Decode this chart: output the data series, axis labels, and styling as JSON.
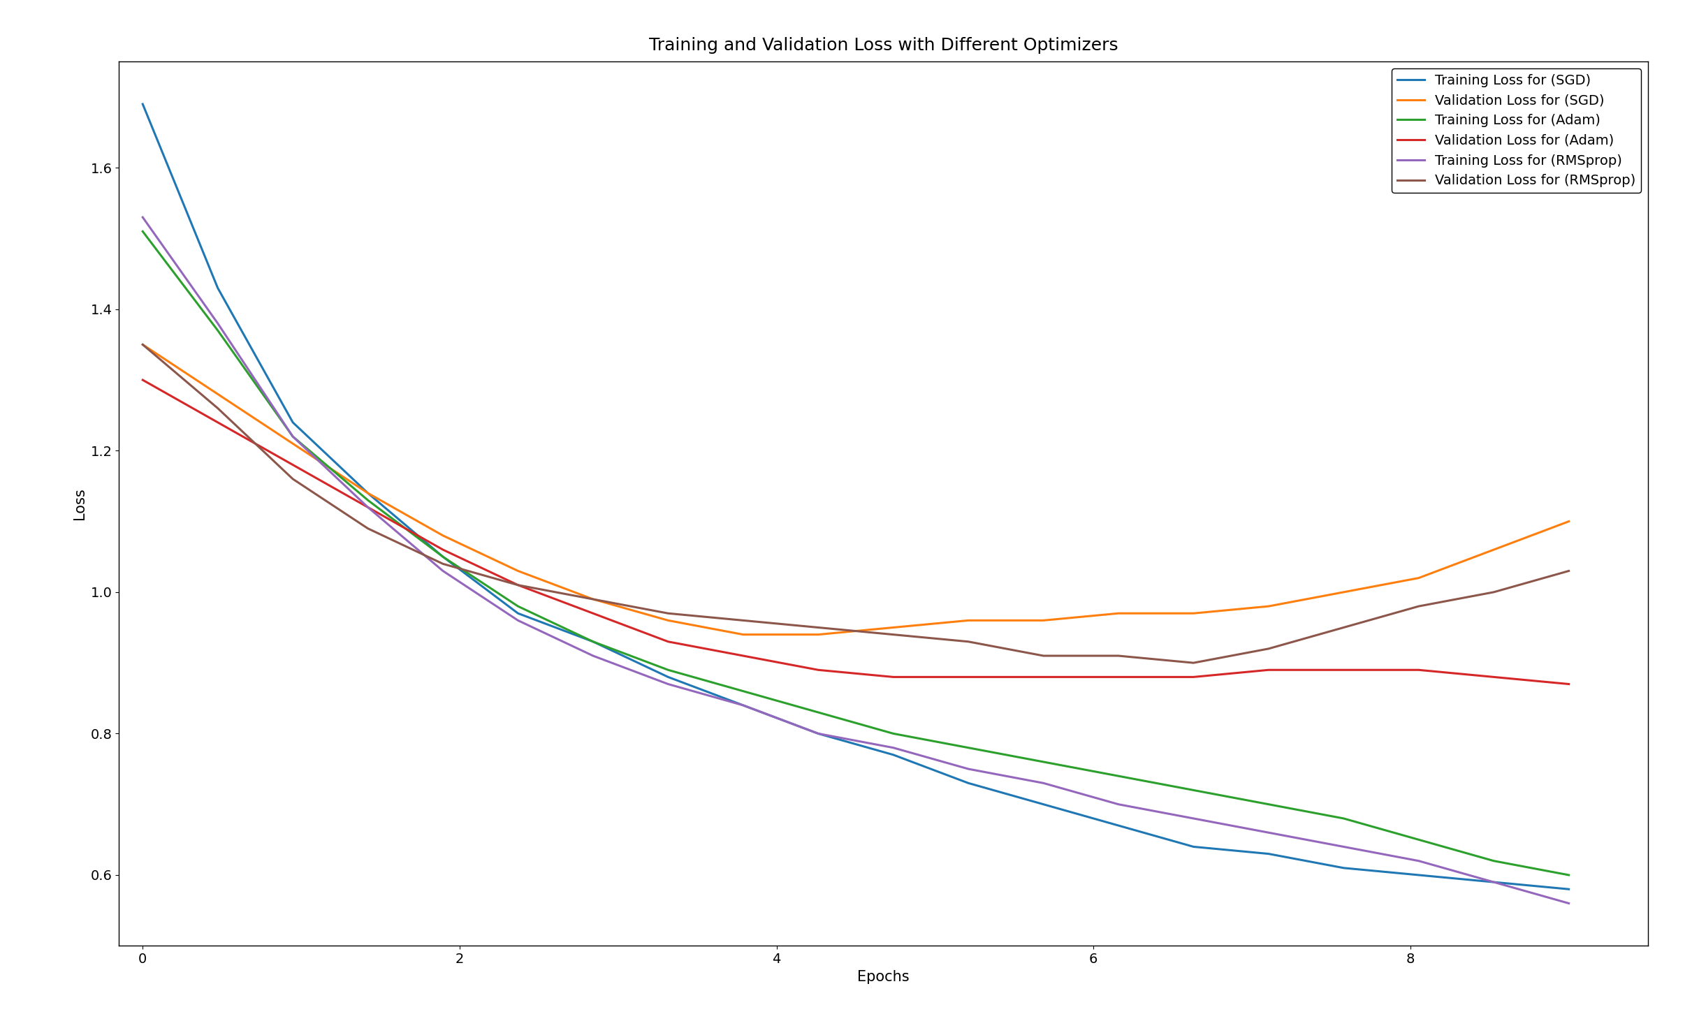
{
  "title": "Training and Validation Loss with Different Optimizers",
  "xlabel": "Epochs",
  "ylabel": "Loss",
  "series": [
    {
      "label": "Training Loss for (SGD)",
      "color": "#1f77b4",
      "data": [
        1.69,
        1.43,
        1.24,
        1.14,
        1.05,
        0.97,
        0.93,
        0.88,
        0.84,
        0.8,
        0.77,
        0.73,
        0.7,
        0.67,
        0.64,
        0.63,
        0.61,
        0.6,
        0.59,
        0.58
      ]
    },
    {
      "label": "Validation Loss for (SGD)",
      "color": "#ff7f0e",
      "data": [
        1.35,
        1.28,
        1.21,
        1.14,
        1.08,
        1.03,
        0.99,
        0.96,
        0.94,
        0.94,
        0.95,
        0.96,
        0.96,
        0.97,
        0.97,
        0.98,
        1.0,
        1.02,
        1.06,
        1.1
      ]
    },
    {
      "label": "Training Loss for (Adam)",
      "color": "#2ca02c",
      "data": [
        1.51,
        1.37,
        1.22,
        1.13,
        1.05,
        0.98,
        0.93,
        0.89,
        0.86,
        0.83,
        0.8,
        0.78,
        0.76,
        0.74,
        0.72,
        0.7,
        0.68,
        0.65,
        0.62,
        0.6
      ]
    },
    {
      "label": "Validation Loss for (Adam)",
      "color": "#d62728",
      "data": [
        1.3,
        1.24,
        1.18,
        1.12,
        1.06,
        1.01,
        0.97,
        0.93,
        0.91,
        0.89,
        0.88,
        0.88,
        0.88,
        0.88,
        0.88,
        0.89,
        0.89,
        0.89,
        0.88,
        0.87
      ]
    },
    {
      "label": "Training Loss for (RMSprop)",
      "color": "#9467bd",
      "data": [
        1.53,
        1.38,
        1.22,
        1.12,
        1.03,
        0.96,
        0.91,
        0.87,
        0.84,
        0.8,
        0.78,
        0.75,
        0.73,
        0.7,
        0.68,
        0.66,
        0.64,
        0.62,
        0.59,
        0.56
      ]
    },
    {
      "label": "Validation Loss for (RMSprop)",
      "color": "#8c564b",
      "data": [
        1.35,
        1.26,
        1.16,
        1.09,
        1.04,
        1.01,
        0.99,
        0.97,
        0.96,
        0.95,
        0.94,
        0.93,
        0.91,
        0.91,
        0.9,
        0.92,
        0.95,
        0.98,
        1.0,
        1.03
      ]
    }
  ],
  "figsize": [
    24.32,
    14.72
  ],
  "dpi": 100,
  "ylim_bottom": 0.5,
  "ylim_top": 1.75,
  "xlim_left": -0.15,
  "xlim_right": 9.5,
  "n_points": 20,
  "background_color": "#ffffff",
  "title_fontsize": 18,
  "axis_label_fontsize": 15,
  "tick_fontsize": 14,
  "legend_fontsize": 14,
  "linewidth": 2.2,
  "yticks": [
    0.6,
    0.8,
    1.0,
    1.2,
    1.4,
    1.6
  ],
  "xticks": [
    0,
    2,
    4,
    6,
    8
  ]
}
